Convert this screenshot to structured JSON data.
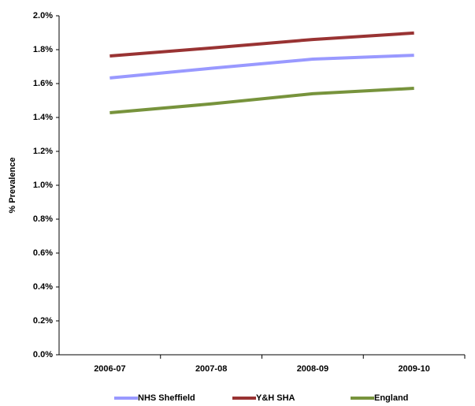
{
  "chart_data": {
    "type": "line",
    "y_label": "% Prevalence",
    "categories": [
      "2006-07",
      "2007-08",
      "2008-09",
      "2009-10"
    ],
    "series": [
      {
        "name": "NHS Sheffield",
        "color": "#9999ff",
        "values": [
          1.633,
          1.69,
          1.744,
          1.767
        ]
      },
      {
        "name": "Y&H SHA",
        "color": "#993333",
        "values": [
          1.763,
          1.81,
          1.86,
          1.898
        ]
      },
      {
        "name": "England",
        "color": "#77933c",
        "values": [
          1.428,
          1.48,
          1.54,
          1.572
        ]
      }
    ],
    "ylim": [
      0,
      2.0
    ],
    "yticks": [
      {
        "value": 0,
        "label": "0.0%"
      },
      {
        "value": 0.2,
        "label": "0.2%"
      },
      {
        "value": 0.4,
        "label": "0.4%"
      },
      {
        "value": 0.6,
        "label": "0.6%"
      },
      {
        "value": 0.8,
        "label": "0.8%"
      },
      {
        "value": 1.0,
        "label": "1.0%"
      },
      {
        "value": 1.2,
        "label": "1.2%"
      },
      {
        "value": 1.4,
        "label": "1.4%"
      },
      {
        "value": 1.6,
        "label": "1.6%"
      },
      {
        "value": 1.8,
        "label": "1.8%"
      },
      {
        "value": 2.0,
        "label": "2.0%"
      }
    ],
    "grid": false,
    "legend": "bottom"
  }
}
